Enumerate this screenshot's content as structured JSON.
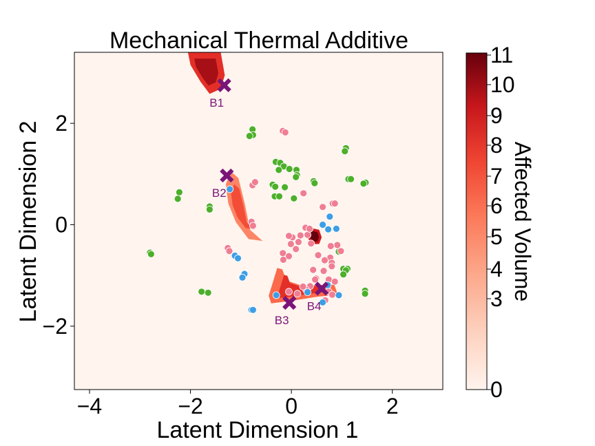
{
  "chart_data": {
    "type": "scatter",
    "title": "Mechanical Thermal Additive",
    "xlabel": "Latent Dimension 1",
    "ylabel": "Latent Dimension 2",
    "xlim": [
      -4.3,
      3.0
    ],
    "ylim": [
      -3.25,
      3.4
    ],
    "xticks": [
      -4,
      -2,
      0,
      2
    ],
    "yticks": [
      -2,
      0,
      2
    ],
    "xtick_labels": [
      "−4",
      "−2",
      "0",
      "2"
    ],
    "ytick_labels": [
      "−2",
      "0",
      "2"
    ],
    "grid": false,
    "colorbar": {
      "label": "Affected Volume",
      "min": 0,
      "max": 11,
      "ticks": [
        0,
        3,
        4,
        5,
        6,
        7,
        8,
        9,
        10,
        11
      ],
      "colormap": "Reds"
    },
    "contour_regions": [
      {
        "name": "top-left",
        "level": 10,
        "points": [
          [
            -1.9,
            3.4
          ],
          [
            -1.4,
            3.4
          ],
          [
            -1.32,
            2.95
          ],
          [
            -1.4,
            2.68
          ],
          [
            -1.62,
            2.58
          ],
          [
            -1.8,
            2.82
          ],
          [
            -2.0,
            3.15
          ],
          [
            -2.05,
            3.4
          ]
        ]
      },
      {
        "name": "center-left",
        "level": 7,
        "points": [
          [
            -1.2,
            1.05
          ],
          [
            -1.05,
            0.92
          ],
          [
            -0.92,
            0.4
          ],
          [
            -0.82,
            -0.1
          ],
          [
            -0.57,
            -0.32
          ],
          [
            -0.85,
            -0.28
          ],
          [
            -1.1,
            0.05
          ],
          [
            -1.25,
            0.42
          ],
          [
            -1.3,
            0.8
          ]
        ]
      },
      {
        "name": "center-small",
        "level": 11,
        "points": [
          [
            0.32,
            -0.05
          ],
          [
            0.55,
            -0.1
          ],
          [
            0.6,
            -0.25
          ],
          [
            0.55,
            -0.38
          ],
          [
            0.4,
            -0.38
          ],
          [
            0.3,
            -0.22
          ]
        ]
      },
      {
        "name": "lower-band",
        "level": 8,
        "points": [
          [
            -0.28,
            -0.85
          ],
          [
            -0.18,
            -0.88
          ],
          [
            -0.1,
            -1.1
          ],
          [
            0.2,
            -1.2
          ],
          [
            0.85,
            -1.18
          ],
          [
            0.92,
            -1.38
          ],
          [
            0.5,
            -1.42
          ],
          [
            0.0,
            -1.5
          ],
          [
            -0.4,
            -1.55
          ],
          [
            -0.45,
            -1.4
          ]
        ]
      }
    ],
    "series": [
      {
        "color": "#4daf2a",
        "points": [
          [
            -2.8,
            -0.55
          ],
          [
            -2.78,
            -0.58
          ],
          [
            -2.22,
            0.64
          ],
          [
            -2.25,
            0.51
          ],
          [
            -1.62,
            0.36
          ],
          [
            -1.62,
            0.3
          ],
          [
            -1.78,
            -1.32
          ],
          [
            -1.65,
            -1.34
          ],
          [
            -0.77,
            1.88
          ],
          [
            -0.76,
            1.77
          ],
          [
            -0.83,
            1.75
          ],
          [
            -0.31,
            1.24
          ],
          [
            -0.22,
            1.22
          ],
          [
            -0.15,
            1.15
          ],
          [
            -0.04,
            1.1
          ],
          [
            -0.25,
            1.08
          ],
          [
            0.1,
            1.08
          ],
          [
            -0.37,
            0.79
          ],
          [
            -0.32,
            0.75
          ],
          [
            -0.33,
            0.56
          ],
          [
            -0.24,
            0.56
          ],
          [
            -0.13,
            0.74
          ],
          [
            0.11,
            0.98
          ],
          [
            0.09,
            0.94
          ],
          [
            0.44,
            0.86
          ],
          [
            0.46,
            0.82
          ],
          [
            0.05,
            0.52
          ],
          [
            1.08,
            1.51
          ],
          [
            1.06,
            1.45
          ],
          [
            1.13,
            0.9
          ],
          [
            1.18,
            0.9
          ],
          [
            1.47,
            0.83
          ],
          [
            1.43,
            0.81
          ],
          [
            1.03,
            -0.87
          ],
          [
            1.11,
            -0.87
          ],
          [
            1.08,
            -0.9
          ],
          [
            1.03,
            -0.98
          ],
          [
            1.46,
            -1.3
          ],
          [
            1.46,
            -1.36
          ],
          [
            0.94,
            -0.53
          ]
        ]
      },
      {
        "color": "#f07e93",
        "points": [
          [
            -0.17,
            1.85
          ],
          [
            -0.12,
            1.82
          ],
          [
            -0.77,
            0.78
          ],
          [
            -0.72,
            0.84
          ],
          [
            -0.79,
            0.06
          ],
          [
            -0.76,
            -0.02
          ],
          [
            -1.26,
            -0.46
          ],
          [
            -1.23,
            -0.52
          ],
          [
            0.24,
            0.62
          ],
          [
            0.62,
            0.35
          ],
          [
            0.82,
            0.42
          ],
          [
            0.86,
            0.42
          ],
          [
            0.28,
            -0.06
          ],
          [
            0.18,
            -0.21
          ],
          [
            0.14,
            -0.34
          ],
          [
            0.02,
            -0.25
          ],
          [
            -0.05,
            -0.22
          ],
          [
            -0.01,
            -0.38
          ],
          [
            0.32,
            -0.2
          ],
          [
            0.36,
            -0.08
          ],
          [
            0.39,
            -0.37
          ],
          [
            0.91,
            -0.4
          ],
          [
            0.78,
            -0.42
          ],
          [
            0.98,
            -0.52
          ],
          [
            0.77,
            -0.65
          ],
          [
            0.8,
            -0.75
          ],
          [
            0.66,
            -0.7
          ],
          [
            0.53,
            -0.6
          ],
          [
            0.09,
            -0.48
          ],
          [
            -0.17,
            -0.56
          ],
          [
            -0.05,
            -0.62
          ],
          [
            -0.16,
            -0.69
          ],
          [
            0.43,
            -0.89
          ],
          [
            0.64,
            -0.91
          ],
          [
            0.8,
            -0.82
          ],
          [
            0.49,
            -1.06
          ],
          [
            0.47,
            -1.08
          ],
          [
            0.74,
            -1.08
          ],
          [
            0.86,
            -1.12
          ],
          [
            0.37,
            -1.21
          ],
          [
            0.29,
            -1.28
          ],
          [
            0.23,
            -1.22
          ],
          [
            -0.05,
            -1.32
          ],
          [
            0.12,
            -1.36
          ],
          [
            0.74,
            -1.32
          ],
          [
            0.81,
            -1.38
          ],
          [
            0.67,
            -1.49
          ]
        ]
      },
      {
        "color": "#3d9ee6",
        "points": [
          [
            -1.22,
            0.7
          ],
          [
            -1.12,
            -0.61
          ],
          [
            -1.06,
            -0.66
          ],
          [
            -0.93,
            -0.97
          ],
          [
            -0.97,
            -1.04
          ],
          [
            -0.79,
            -1.68
          ],
          [
            -0.76,
            -1.68
          ],
          [
            0.62,
            0.0
          ],
          [
            0.76,
            0.16
          ],
          [
            0.73,
            -0.09
          ],
          [
            0.89,
            -0.08
          ],
          [
            0.72,
            -1.19
          ],
          [
            0.94,
            -1.39
          ],
          [
            0.62,
            -1.53
          ],
          [
            0.32,
            -1.33
          ],
          [
            -0.3,
            -1.39
          ]
        ]
      }
    ],
    "annotations": [
      {
        "label": "B1",
        "x": -1.33,
        "y": 2.75,
        "color": "#7a1578"
      },
      {
        "label": "B2",
        "x": -1.28,
        "y": 0.97,
        "color": "#7a1578"
      },
      {
        "label": "B3",
        "x": -0.04,
        "y": -1.54,
        "color": "#7a1578"
      },
      {
        "label": "B4",
        "x": 0.6,
        "y": -1.26,
        "color": "#7a1578"
      }
    ],
    "colors": {
      "background": "#fff4ee",
      "marker_x": "#7a1578",
      "label_color": "#7a1578"
    }
  }
}
